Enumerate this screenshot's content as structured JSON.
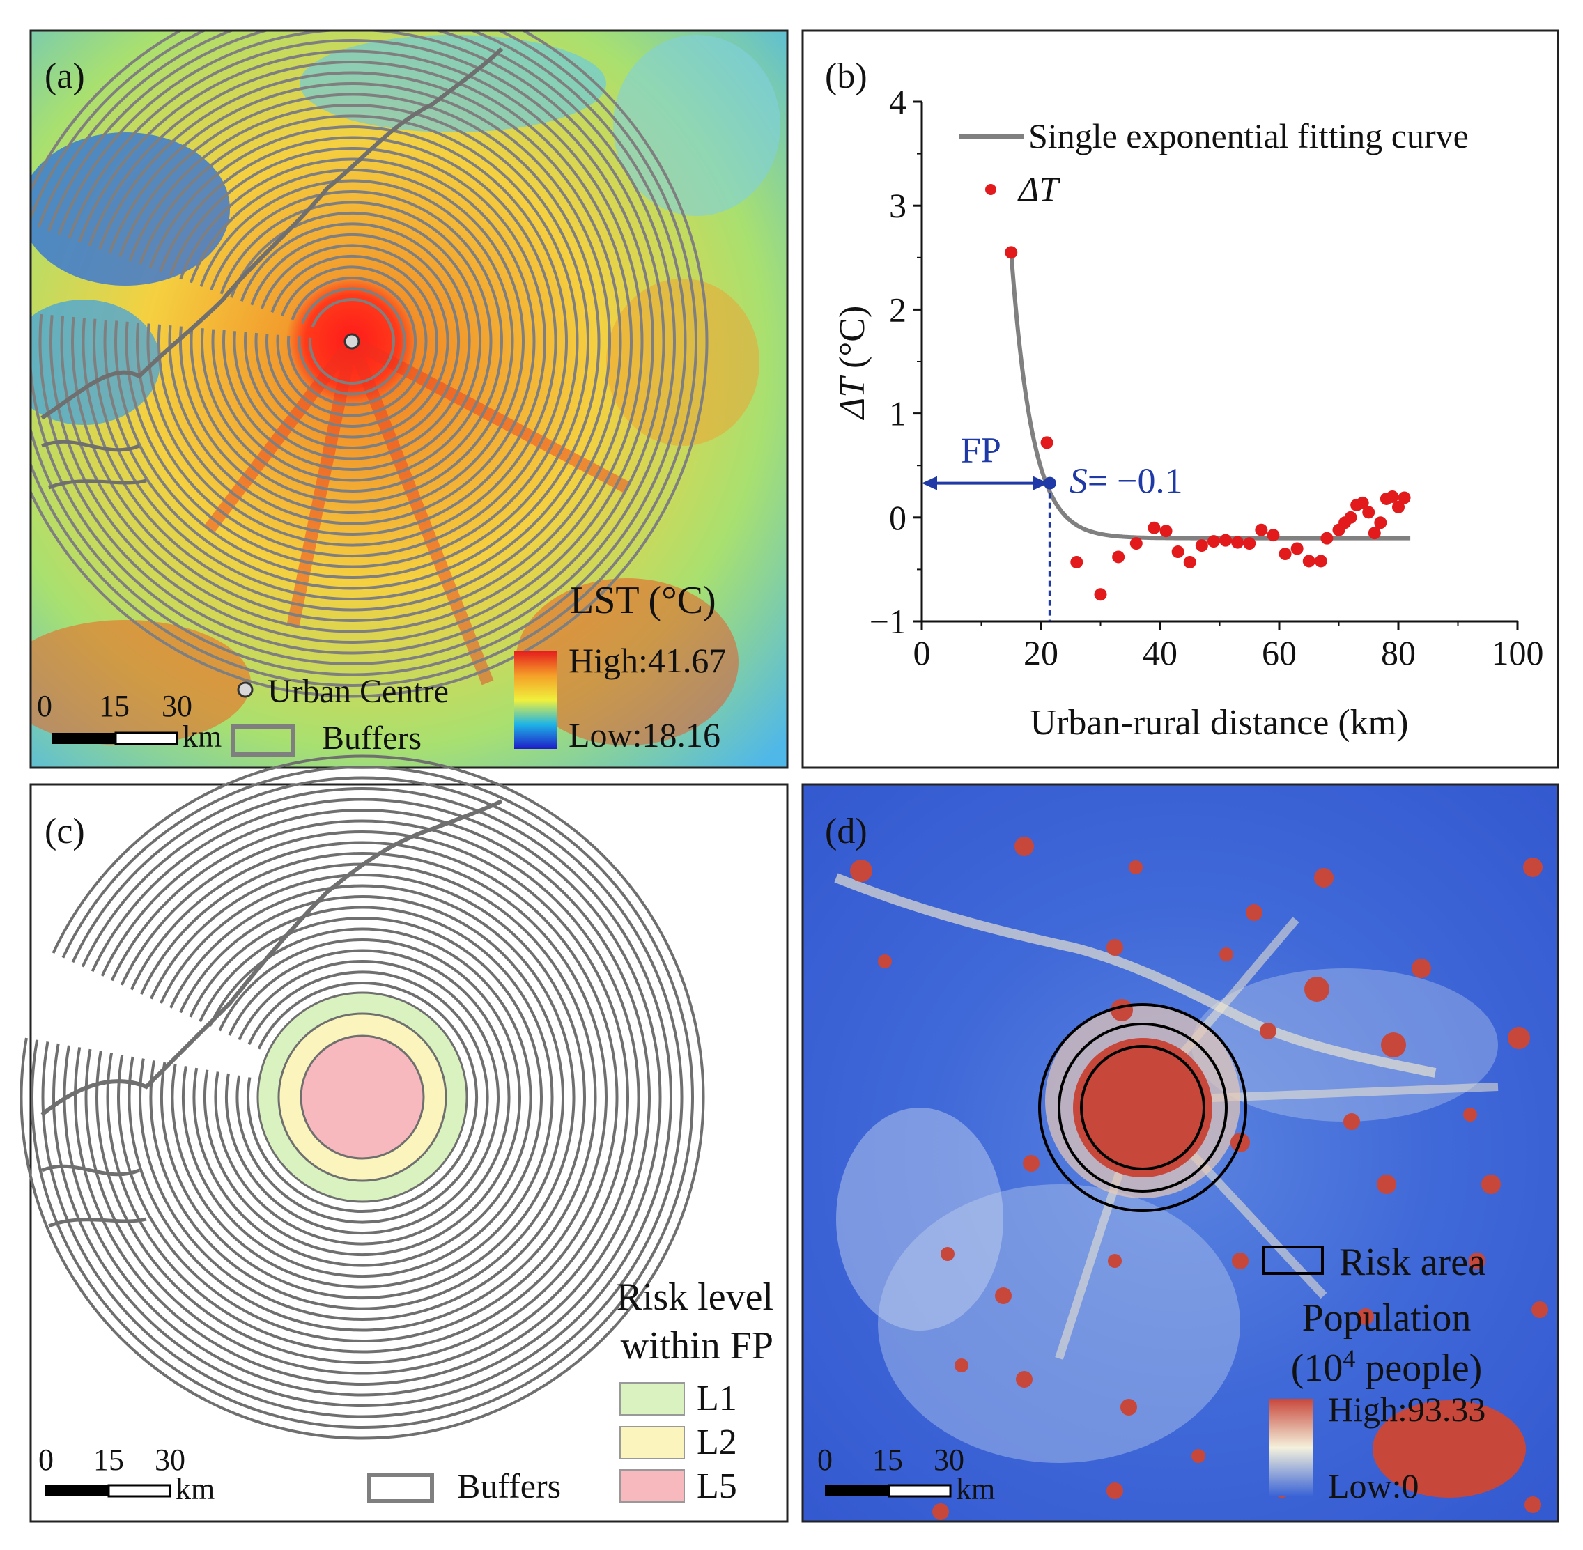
{
  "panels": {
    "a": {
      "label": "(a)",
      "legend_title": "LST (°C)",
      "legend_high": "High:41.67",
      "legend_low": "Low:18.16",
      "urban_centre_label": "Urban Centre",
      "buffers_label": "Buffers",
      "scale": {
        "ticks": [
          "0",
          "15",
          "30"
        ],
        "unit": "km"
      },
      "colors": {
        "low": "#1e3cc8",
        "mid": "#f0f03c",
        "high": "#e61e1e"
      }
    },
    "b": {
      "label": "(b)"
    },
    "c": {
      "label": "(c)",
      "legend_title_line1": "Risk level",
      "legend_title_line2": "within FP",
      "levels": [
        {
          "name": "L1",
          "color": "#d9f2c0"
        },
        {
          "name": "L2",
          "color": "#fbf5bd"
        },
        {
          "name": "L5",
          "color": "#f7b9be"
        }
      ],
      "buffers_label": "Buffers",
      "scale": {
        "ticks": [
          "0",
          "15",
          "30"
        ],
        "unit": "km"
      }
    },
    "d": {
      "label": "(d)",
      "risk_area_label": "Risk area",
      "legend_title_line1": "Population",
      "legend_title_line2_prefix": "(10",
      "legend_title_superscript": "4",
      "legend_title_line2_suffix": " people)",
      "legend_high": "High:93.33",
      "legend_low": "Low:0",
      "scale": {
        "ticks": [
          "0",
          "15",
          "30"
        ],
        "unit": "km"
      },
      "colors": {
        "low": "#3a63d6",
        "mid": "#f4f1dc",
        "high": "#c8473b"
      }
    }
  },
  "chart_data": {
    "type": "scatter",
    "title": "",
    "xlabel": "Urban-rural distance (km)",
    "ylabel_italic": "ΔT",
    "ylabel_unit": " (°C)",
    "xlim": [
      0,
      100
    ],
    "ylim": [
      -1,
      4
    ],
    "xticks": [
      0,
      20,
      40,
      60,
      80,
      100
    ],
    "yticks": [
      -1,
      0,
      1,
      2,
      3,
      4
    ],
    "series": [
      {
        "name": "ΔT",
        "kind": "points",
        "color": "#e31a1c",
        "x": [
          15,
          21,
          26,
          30,
          33,
          36,
          39,
          41,
          43,
          45,
          47,
          49,
          51,
          53,
          55,
          57,
          59,
          61,
          63,
          65,
          67,
          68,
          70,
          71,
          72,
          73,
          74,
          75,
          76,
          77,
          78,
          79,
          80,
          81
        ],
        "y": [
          2.55,
          0.72,
          -0.43,
          -0.74,
          -0.38,
          -0.25,
          -0.1,
          -0.13,
          -0.33,
          -0.43,
          -0.27,
          -0.23,
          -0.22,
          -0.24,
          -0.25,
          -0.12,
          -0.17,
          -0.35,
          -0.3,
          -0.42,
          -0.42,
          -0.2,
          -0.12,
          -0.05,
          0.0,
          0.12,
          0.14,
          0.05,
          -0.15,
          -0.05,
          0.18,
          0.2,
          0.1,
          0.19
        ]
      },
      {
        "name": "Single exponential fitting curve",
        "kind": "line",
        "color": "#808080",
        "model": {
          "a": 2.75,
          "b": 0.28,
          "x0": 15,
          "c": -0.2
        },
        "x_range": [
          15,
          82
        ]
      }
    ],
    "annotations": {
      "fp_label": "FP",
      "fp_x": 21.5,
      "fp_y": 0.33,
      "s_label_italic": "S",
      "s_label_value": "= −0.1",
      "color": "#1f3aa6"
    },
    "legend": [
      {
        "label": "Single exponential fitting curve",
        "type": "line"
      },
      {
        "label": "ΔT",
        "type": "point"
      }
    ]
  }
}
